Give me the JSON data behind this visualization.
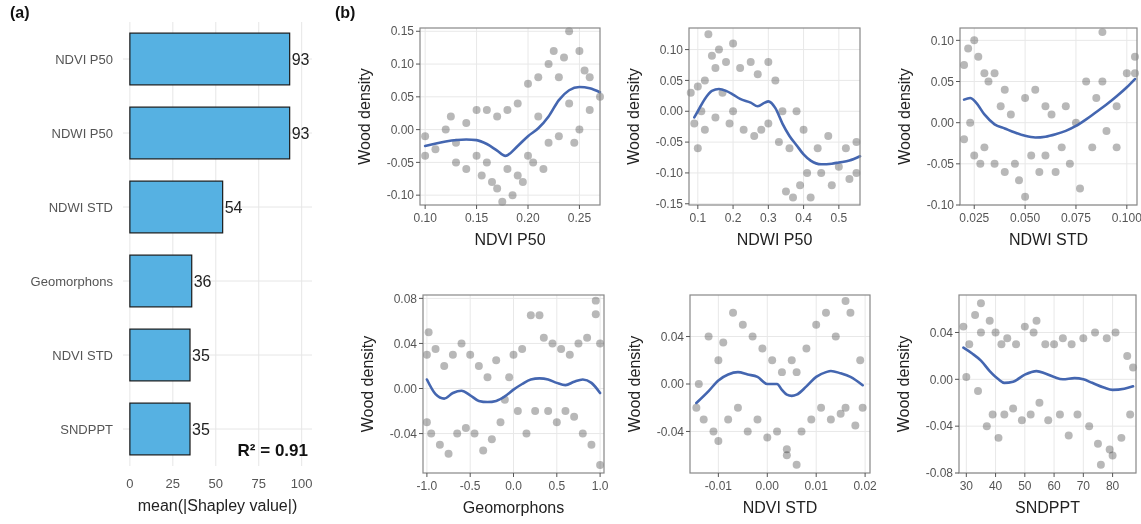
{
  "chart_data": [
    {
      "type": "bar",
      "title": "(a)",
      "orientation": "horizontal",
      "categories": [
        "NDVI P50",
        "NDWI P50",
        "NDWI STD",
        "Geomorphons",
        "NDVI STD",
        "SNDPPT"
      ],
      "values": [
        93,
        93,
        54,
        36,
        35,
        35
      ],
      "color": "#56b1e2",
      "xlim": [
        -4,
        106
      ],
      "xticks": [
        0,
        25,
        50,
        75,
        100
      ],
      "xlabel": "mean(|Shapley value|)",
      "data_labels": true,
      "grid": true,
      "annotations": [
        "R² = 0.91"
      ]
    },
    {
      "type": "scatter",
      "title": "(b)",
      "xlabel": "NDVI P50",
      "ylabel": "Wood density",
      "xlim": [
        0.095,
        0.27
      ],
      "xticks": [
        {
          "value": 0.1,
          "label": "0.10"
        },
        {
          "value": 0.15,
          "label": "0.15"
        },
        {
          "value": 0.2,
          "label": "0.20"
        },
        {
          "value": 0.25,
          "label": "0.25"
        }
      ],
      "ylim": [
        -0.115,
        0.155
      ],
      "yticks": [
        {
          "value": -0.1,
          "label": "-0.10"
        },
        {
          "value": -0.05,
          "label": "-0.05"
        },
        {
          "value": 0,
          "label": "0.00"
        },
        {
          "value": 0.05,
          "label": "0.05"
        },
        {
          "value": 0.1,
          "label": "0.10"
        },
        {
          "value": 0.15,
          "label": "0.15"
        }
      ],
      "grid": true,
      "marker": "circle",
      "series": [
        {
          "type": "scatter",
          "color": "#000000",
          "x": [
            0.1,
            0.1,
            0.11,
            0.12,
            0.125,
            0.13,
            0.13,
            0.14,
            0.14,
            0.15,
            0.15,
            0.155,
            0.16,
            0.16,
            0.165,
            0.17,
            0.17,
            0.175,
            0.18,
            0.18,
            0.185,
            0.19,
            0.19,
            0.195,
            0.2,
            0.2,
            0.205,
            0.21,
            0.21,
            0.215,
            0.22,
            0.22,
            0.225,
            0.23,
            0.23,
            0.235,
            0.24,
            0.24,
            0.245,
            0.25,
            0.25,
            0.255,
            0.26,
            0.26,
            0.27
          ],
          "values": [
            -0.04,
            -0.01,
            -0.03,
            0.0,
            0.02,
            -0.05,
            -0.02,
            0.01,
            -0.06,
            0.03,
            -0.04,
            -0.07,
            0.03,
            -0.05,
            -0.08,
            0.02,
            -0.09,
            -0.11,
            0.03,
            -0.06,
            -0.1,
            0.04,
            -0.07,
            -0.08,
            0.07,
            -0.04,
            -0.05,
            0.08,
            0.02,
            -0.06,
            0.1,
            -0.02,
            0.12,
            0.08,
            -0.01,
            0.11,
            0.15,
            0.04,
            -0.02,
            0.12,
            0.0,
            0.09,
            0.08,
            0.03,
            0.05
          ]
        },
        {
          "type": "line",
          "marker": "none",
          "color": "#4466b0",
          "x": [
            0.1,
            0.12,
            0.14,
            0.15,
            0.16,
            0.17,
            0.178,
            0.19,
            0.2,
            0.21,
            0.22,
            0.23,
            0.24,
            0.25,
            0.26,
            0.27
          ],
          "values": [
            -0.025,
            -0.018,
            -0.015,
            -0.016,
            -0.022,
            -0.032,
            -0.04,
            -0.025,
            -0.01,
            0.002,
            0.02,
            0.045,
            0.06,
            0.065,
            0.063,
            0.057
          ]
        }
      ]
    },
    {
      "type": "scatter",
      "xlabel": "NDWI P50",
      "ylabel": "Wood density",
      "xlim": [
        0.075,
        0.56
      ],
      "xticks": [
        0.1,
        0.2,
        0.3,
        0.4,
        0.5
      ],
      "ylim": [
        -0.152,
        0.135
      ],
      "yticks": [
        {
          "value": -0.15,
          "label": "-0.15"
        },
        {
          "value": -0.1,
          "label": "-0.10"
        },
        {
          "value": -0.05,
          "label": "-0.05"
        },
        {
          "value": 0,
          "label": "0.00"
        },
        {
          "value": 0.05,
          "label": "0.05"
        },
        {
          "value": 0.1,
          "label": "0.10"
        }
      ],
      "grid": true,
      "marker": "circle",
      "series": [
        {
          "type": "scatter",
          "color": "#000000",
          "x": [
            0.08,
            0.09,
            0.1,
            0.1,
            0.11,
            0.12,
            0.12,
            0.13,
            0.14,
            0.15,
            0.15,
            0.16,
            0.17,
            0.18,
            0.19,
            0.2,
            0.2,
            0.22,
            0.23,
            0.25,
            0.26,
            0.27,
            0.28,
            0.3,
            0.3,
            0.32,
            0.33,
            0.34,
            0.35,
            0.36,
            0.37,
            0.38,
            0.39,
            0.4,
            0.41,
            0.42,
            0.44,
            0.45,
            0.47,
            0.48,
            0.5,
            0.52,
            0.53,
            0.55,
            0.55
          ],
          "values": [
            0.03,
            -0.02,
            0.04,
            -0.06,
            0.0,
            0.05,
            -0.03,
            0.125,
            0.09,
            0.07,
            -0.01,
            0.1,
            0.03,
            0.08,
            -0.02,
            0.11,
            0.0,
            0.07,
            -0.03,
            0.08,
            -0.04,
            0.06,
            -0.03,
            0.08,
            -0.02,
            0.05,
            -0.05,
            0.0,
            -0.13,
            -0.06,
            -0.14,
            0.0,
            -0.12,
            -0.03,
            -0.1,
            -0.14,
            -0.06,
            -0.1,
            -0.04,
            -0.12,
            -0.09,
            -0.06,
            -0.11,
            -0.05,
            -0.1
          ]
        },
        {
          "type": "line",
          "marker": "none",
          "color": "#4466b0",
          "x": [
            0.09,
            0.1,
            0.12,
            0.14,
            0.16,
            0.18,
            0.2,
            0.22,
            0.25,
            0.27,
            0.29,
            0.3,
            0.32,
            0.34,
            0.36,
            0.38,
            0.4,
            0.42,
            0.45,
            0.48,
            0.5,
            0.53,
            0.56
          ],
          "values": [
            -0.01,
            0.0,
            0.02,
            0.033,
            0.036,
            0.033,
            0.027,
            0.02,
            0.014,
            0.008,
            0.014,
            0.016,
            0.005,
            -0.02,
            -0.04,
            -0.055,
            -0.07,
            -0.08,
            -0.086,
            -0.085,
            -0.083,
            -0.08,
            -0.073
          ]
        }
      ]
    },
    {
      "type": "scatter",
      "xlabel": "NDWI STD",
      "ylabel": "Wood density",
      "xlim": [
        0.018,
        0.105
      ],
      "xticks": [
        {
          "value": 0.025,
          "label": "0.025"
        },
        {
          "value": 0.05,
          "label": "0.050"
        },
        {
          "value": 0.075,
          "label": "0.075"
        },
        {
          "value": 0.1,
          "label": "0.100"
        }
      ],
      "ylim": [
        -0.1,
        0.115
      ],
      "yticks": [
        {
          "value": -0.1,
          "label": "-0.10"
        },
        {
          "value": -0.05,
          "label": "-0.05"
        },
        {
          "value": 0,
          "label": "0.00"
        },
        {
          "value": 0.05,
          "label": "0.05"
        },
        {
          "value": 0.1,
          "label": "0.10"
        }
      ],
      "grid": true,
      "marker": "circle",
      "series": [
        {
          "type": "scatter",
          "color": "#000000",
          "x": [
            0.02,
            0.02,
            0.022,
            0.023,
            0.025,
            0.025,
            0.027,
            0.028,
            0.03,
            0.03,
            0.032,
            0.035,
            0.035,
            0.038,
            0.04,
            0.04,
            0.043,
            0.045,
            0.047,
            0.05,
            0.05,
            0.053,
            0.055,
            0.057,
            0.06,
            0.06,
            0.063,
            0.065,
            0.068,
            0.07,
            0.072,
            0.075,
            0.077,
            0.08,
            0.083,
            0.085,
            0.088,
            0.088,
            0.09,
            0.095,
            0.095,
            0.1,
            0.104,
            0.104
          ],
          "values": [
            0.07,
            -0.02,
            0.09,
            0.0,
            0.1,
            -0.04,
            0.08,
            -0.05,
            0.06,
            -0.03,
            0.05,
            0.06,
            -0.05,
            0.02,
            0.04,
            -0.06,
            0.01,
            -0.05,
            -0.07,
            0.03,
            -0.09,
            -0.04,
            0.04,
            -0.06,
            0.02,
            -0.04,
            0.01,
            -0.06,
            -0.03,
            0.02,
            -0.05,
            0.0,
            -0.08,
            0.05,
            -0.03,
            0.03,
            0.11,
            0.05,
            -0.01,
            0.02,
            -0.03,
            0.06,
            0.08,
            0.06
          ]
        },
        {
          "type": "line",
          "marker": "none",
          "color": "#4466b0",
          "x": [
            0.02,
            0.023,
            0.026,
            0.03,
            0.035,
            0.04,
            0.045,
            0.05,
            0.055,
            0.06,
            0.065,
            0.07,
            0.075,
            0.08,
            0.085,
            0.09,
            0.095,
            0.1,
            0.104
          ],
          "values": [
            0.028,
            0.03,
            0.024,
            0.01,
            -0.002,
            -0.007,
            -0.012,
            -0.016,
            -0.018,
            -0.017,
            -0.014,
            -0.01,
            -0.004,
            0.004,
            0.013,
            0.022,
            0.032,
            0.043,
            0.053
          ]
        }
      ]
    },
    {
      "type": "scatter",
      "xlabel": "Geomorphons",
      "ylabel": "Wood density",
      "xlim": [
        -1.045,
        1.045
      ],
      "xticks": [
        {
          "value": -1,
          "label": "-1.0"
        },
        {
          "value": -0.5,
          "label": "-0.5"
        },
        {
          "value": 0,
          "label": "0.0"
        },
        {
          "value": 0.5,
          "label": "0.5"
        },
        {
          "value": 1,
          "label": "1.0"
        }
      ],
      "ylim": [
        -0.075,
        0.083
      ],
      "yticks": [
        {
          "value": -0.04,
          "label": "-0.04"
        },
        {
          "value": 0,
          "label": "0.00"
        },
        {
          "value": 0.04,
          "label": "0.04"
        },
        {
          "value": 0.08,
          "label": "0.08"
        }
      ],
      "grid": true,
      "marker": "circle",
      "series": [
        {
          "type": "scatter",
          "color": "#000000",
          "x": [
            -1,
            -1,
            -0.98,
            -0.95,
            -0.9,
            -0.85,
            -0.8,
            -0.75,
            -0.7,
            -0.65,
            -0.6,
            -0.55,
            -0.5,
            -0.45,
            -0.4,
            -0.35,
            -0.3,
            -0.25,
            -0.2,
            -0.15,
            -0.1,
            -0.05,
            0,
            0.05,
            0.1,
            0.15,
            0.2,
            0.25,
            0.3,
            0.35,
            0.4,
            0.45,
            0.5,
            0.55,
            0.6,
            0.65,
            0.7,
            0.75,
            0.8,
            0.85,
            0.9,
            0.95,
            0.95,
            1,
            1
          ],
          "values": [
            0.03,
            -0.03,
            0.05,
            -0.04,
            0.035,
            -0.05,
            0.02,
            -0.058,
            0.03,
            -0.04,
            0.04,
            -0.035,
            0.03,
            -0.04,
            0.02,
            -0.055,
            0.01,
            -0.045,
            0.025,
            -0.03,
            -0.01,
            0.01,
            0.03,
            -0.02,
            0.035,
            -0.04,
            0.065,
            -0.02,
            0.065,
            0.045,
            -0.02,
            0.04,
            -0.03,
            0.035,
            -0.02,
            0.03,
            -0.025,
            0.04,
            -0.04,
            0.045,
            -0.05,
            0.078,
            0.066,
            -0.068,
            0.04
          ]
        },
        {
          "type": "line",
          "marker": "none",
          "color": "#4466b0",
          "x": [
            -1,
            -0.9,
            -0.8,
            -0.7,
            -0.6,
            -0.5,
            -0.4,
            -0.3,
            -0.2,
            -0.1,
            0,
            0.1,
            0.2,
            0.3,
            0.4,
            0.5,
            0.6,
            0.7,
            0.8,
            0.9,
            1.0
          ],
          "values": [
            0.008,
            -0.005,
            -0.009,
            -0.004,
            -0.002,
            -0.006,
            -0.011,
            -0.012,
            -0.011,
            -0.007,
            -0.001,
            0.004,
            0.008,
            0.009,
            0.008,
            0.005,
            0.003,
            0.006,
            0.008,
            0.005,
            -0.004
          ]
        }
      ]
    },
    {
      "type": "scatter",
      "xlabel": "NDVI STD",
      "ylabel": "Wood density",
      "xlim": [
        -0.0158,
        0.021
      ],
      "xticks": [
        -0.01,
        {
          "value": 0,
          "label": "0.00"
        },
        0.01,
        0.02
      ],
      "ylim": [
        -0.075,
        0.075
      ],
      "yticks": [
        {
          "value": -0.04,
          "label": "-0.04"
        },
        {
          "value": 0,
          "label": "0.00"
        },
        {
          "value": 0.04,
          "label": "0.04"
        }
      ],
      "grid": true,
      "marker": "circle",
      "series": [
        {
          "type": "scatter",
          "color": "#000000",
          "x": [
            -0.0145,
            -0.014,
            -0.013,
            -0.012,
            -0.011,
            -0.01,
            -0.01,
            -0.009,
            -0.008,
            -0.007,
            -0.006,
            -0.005,
            -0.004,
            -0.003,
            -0.002,
            -0.001,
            0,
            0.001,
            0.002,
            0.003,
            0.004,
            0.004,
            0.005,
            0.006,
            0.006,
            0.007,
            0.008,
            0.009,
            0.01,
            0.011,
            0.012,
            0.013,
            0.014,
            0.015,
            0.016,
            0.016,
            0.017,
            0.018,
            0.019,
            0.0195
          ],
          "values": [
            -0.02,
            0.0,
            -0.03,
            0.04,
            -0.04,
            0.02,
            -0.048,
            0.035,
            -0.03,
            0.06,
            -0.02,
            0.05,
            -0.04,
            0.04,
            -0.03,
            0.03,
            -0.045,
            0.02,
            -0.04,
            0.01,
            -0.06,
            -0.055,
            0.02,
            -0.068,
            0.01,
            -0.04,
            0.03,
            -0.03,
            0.05,
            -0.02,
            0.06,
            -0.03,
            0.04,
            -0.025,
            0.07,
            -0.02,
            0.06,
            -0.035,
            0.02,
            -0.02
          ]
        },
        {
          "type": "line",
          "marker": "none",
          "color": "#4466b0",
          "x": [
            -0.0145,
            -0.012,
            -0.01,
            -0.008,
            -0.006,
            -0.004,
            -0.002,
            0,
            0.001,
            0.002,
            0.003,
            0.004,
            0.005,
            0.006,
            0.008,
            0.01,
            0.012,
            0.013,
            0.015,
            0.017,
            0.0195
          ],
          "values": [
            -0.016,
            -0.006,
            0.003,
            0.008,
            0.01,
            0.008,
            0.006,
            0.0,
            0.0,
            0.0,
            -0.005,
            -0.009,
            -0.01,
            -0.009,
            -0.002,
            0.006,
            0.01,
            0.011,
            0.009,
            0.006,
            -0.001
          ]
        }
      ]
    },
    {
      "type": "scatter",
      "xlabel": "SNDPPT",
      "ylabel": "Wood density",
      "xlim": [
        27.5,
        88
      ],
      "xticks": [
        30,
        40,
        50,
        60,
        70,
        80
      ],
      "ylim": [
        -0.08,
        0.072
      ],
      "yticks": [
        {
          "value": -0.08,
          "label": "-0.08"
        },
        {
          "value": -0.04,
          "label": "-0.04"
        },
        {
          "value": 0,
          "label": "0.00"
        },
        {
          "value": 0.04,
          "label": "0.04"
        }
      ],
      "grid": true,
      "marker": "circle",
      "series": [
        {
          "type": "scatter",
          "color": "#000000",
          "x": [
            29,
            30,
            31,
            33,
            34,
            35,
            35,
            37,
            38,
            39,
            40,
            41,
            42,
            43,
            44,
            46,
            47,
            49,
            50,
            52,
            53,
            54,
            55,
            57,
            58,
            60,
            62,
            63,
            65,
            66,
            68,
            70,
            72,
            74,
            75,
            76,
            78,
            79,
            80,
            81,
            83,
            85,
            86,
            87
          ],
          "values": [
            0.045,
            0.002,
            0.03,
            0.055,
            -0.01,
            0.065,
            0.04,
            -0.04,
            0.05,
            -0.03,
            0.04,
            -0.05,
            0.03,
            -0.03,
            0.035,
            -0.025,
            0.03,
            -0.035,
            0.045,
            -0.03,
            0.04,
            0.05,
            -0.02,
            0.03,
            -0.035,
            0.03,
            -0.03,
            0.035,
            -0.048,
            0.03,
            -0.03,
            0.035,
            -0.04,
            0.04,
            -0.055,
            -0.073,
            0.035,
            -0.06,
            -0.065,
            0.04,
            -0.05,
            0.02,
            -0.03,
            0.01
          ]
        },
        {
          "type": "line",
          "marker": "none",
          "color": "#4466b0",
          "x": [
            29,
            32,
            35,
            38,
            41,
            43,
            46,
            50,
            54,
            57,
            60,
            63,
            67,
            70,
            73,
            77,
            80,
            84,
            87
          ],
          "values": [
            0.027,
            0.022,
            0.016,
            0.007,
            0.0,
            -0.003,
            -0.002,
            0.004,
            0.007,
            0.005,
            0.002,
            0.0,
            0.001,
            0.0,
            -0.003,
            -0.007,
            -0.009,
            -0.008,
            -0.006
          ]
        }
      ]
    }
  ]
}
